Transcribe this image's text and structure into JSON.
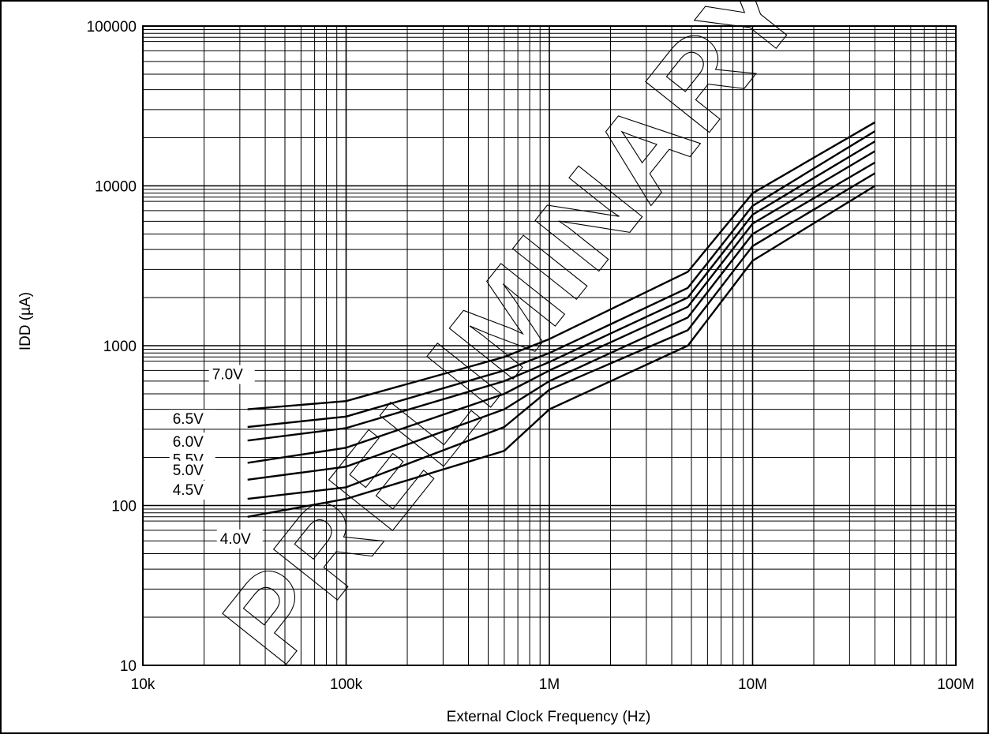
{
  "chart_data": {
    "type": "line",
    "title": "",
    "xlabel": "External Clock Frequency (Hz)",
    "ylabel": "IDD (µA)",
    "x_scale": "log",
    "y_scale": "log",
    "xlim": [
      10000,
      100000000
    ],
    "ylim": [
      10,
      100000
    ],
    "x_tick_labels": [
      "10k",
      "100k",
      "1M",
      "10M",
      "100M"
    ],
    "y_tick_labels": [
      "10",
      "100",
      "1000",
      "10000",
      "100000"
    ],
    "grid": true,
    "watermark": "PRELIMINARY",
    "x": [
      32768,
      100000,
      600000,
      1000000,
      4800000,
      10000000,
      40000000
    ],
    "series": [
      {
        "name": "7.0V",
        "values": [
          400,
          450,
          850,
          1100,
          2900,
          9000,
          25000
        ]
      },
      {
        "name": "6.5V",
        "values": [
          310,
          360,
          700,
          900,
          2300,
          7500,
          22000
        ]
      },
      {
        "name": "6.0V",
        "values": [
          255,
          305,
          600,
          790,
          2000,
          6600,
          19000
        ]
      },
      {
        "name": "5.5V",
        "values": [
          185,
          230,
          500,
          700,
          1750,
          5800,
          16500
        ]
      },
      {
        "name": "5.0V",
        "values": [
          145,
          175,
          400,
          600,
          1500,
          5000,
          14000
        ]
      },
      {
        "name": "4.5V",
        "values": [
          110,
          130,
          310,
          530,
          1250,
          4200,
          12000
        ]
      },
      {
        "name": "4.0V",
        "values": [
          85,
          110,
          220,
          400,
          1000,
          3400,
          10000
        ]
      }
    ]
  }
}
